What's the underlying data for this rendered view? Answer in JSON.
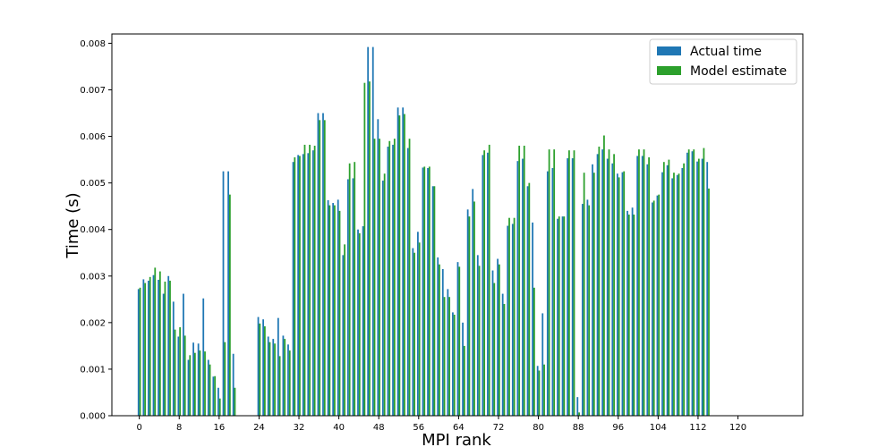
{
  "chart_data": {
    "type": "bar",
    "xlabel": "MPI rank",
    "ylabel": "Time (s)",
    "xlim": [
      -5.5,
      133
    ],
    "ylim": [
      0,
      0.0082
    ],
    "x_ticks": [
      0,
      8,
      16,
      24,
      32,
      40,
      48,
      56,
      64,
      72,
      80,
      88,
      96,
      104,
      112,
      120
    ],
    "y_ticks": [
      0.0,
      0.001,
      0.002,
      0.003,
      0.004,
      0.005,
      0.006,
      0.007,
      0.008
    ],
    "y_tick_labels": [
      "0.000",
      "0.001",
      "0.002",
      "0.003",
      "0.004",
      "0.005",
      "0.006",
      "0.007",
      "0.008"
    ],
    "legend_position": "top-right",
    "series": [
      {
        "name": "Actual time",
        "color": "#1f77b4",
        "values": [
          0.00272,
          0.00293,
          0.0029,
          0.00302,
          0.00292,
          0.00262,
          0.003,
          0.00245,
          0.0017,
          0.00262,
          0.0012,
          0.00157,
          0.00155,
          0.00252,
          0.0012,
          0.00084,
          0.0006,
          0.00525,
          0.00525,
          0.00133,
          0,
          0,
          0,
          0,
          0.00212,
          0.00207,
          0.0017,
          0.00165,
          0.0021,
          0.00172,
          0.00153,
          0.00545,
          0.0056,
          0.00562,
          0.00564,
          0.0057,
          0.0065,
          0.0065,
          0.00463,
          0.00457,
          0.00464,
          0.00345,
          0.00508,
          0.0051,
          0.004,
          0.00407,
          0.00792,
          0.00792,
          0.00637,
          0.00505,
          0.00578,
          0.00582,
          0.00662,
          0.00662,
          0.00575,
          0.0036,
          0.00395,
          0.00533,
          0.00532,
          0.00493,
          0.0034,
          0.00315,
          0.00272,
          0.00222,
          0.0033,
          0.002,
          0.00443,
          0.00487,
          0.00345,
          0.0056,
          0.00565,
          0.00312,
          0.00337,
          0.00262,
          0.00408,
          0.00412,
          0.00547,
          0.00552,
          0.00493,
          0.00415,
          0.00107,
          0.0022,
          0.00525,
          0.00532,
          0.00423,
          0.00428,
          0.00553,
          0.00553,
          0.0004,
          0.00455,
          0.00464,
          0.0054,
          0.00562,
          0.00572,
          0.00552,
          0.00542,
          0.0052,
          0.00523,
          0.0044,
          0.00447,
          0.00558,
          0.00558,
          0.0054,
          0.00458,
          0.00473,
          0.00523,
          0.00538,
          0.0051,
          0.00517,
          0.00532,
          0.00565,
          0.00568,
          0.00546,
          0.00552,
          0.00545
        ],
        "x": [
          0,
          1,
          2,
          3,
          4,
          5,
          6,
          7,
          8,
          9,
          10,
          11,
          12,
          13,
          14,
          15,
          16,
          17,
          18,
          19,
          20,
          21,
          22,
          23,
          24,
          25,
          26,
          27,
          28,
          29,
          30,
          31,
          32,
          33,
          34,
          35,
          36,
          37,
          38,
          39,
          40,
          41,
          42,
          43,
          44,
          45,
          46,
          47,
          48,
          49,
          50,
          51,
          52,
          53,
          54,
          55,
          56,
          57,
          58,
          59,
          60,
          61,
          62,
          63,
          64,
          65,
          66,
          67,
          68,
          69,
          70,
          71,
          72,
          73,
          74,
          75,
          76,
          77,
          78,
          79,
          80,
          81,
          82,
          83,
          84,
          85,
          86,
          87,
          88,
          89,
          90,
          91,
          92,
          93,
          94,
          95,
          96,
          97,
          98,
          99,
          100,
          101,
          102,
          103,
          104,
          105,
          106,
          107,
          108,
          109,
          110,
          111,
          112,
          113,
          114
        ]
      },
      {
        "name": "Model estimate",
        "color": "#2ca02c",
        "values": [
          0.00275,
          0.00285,
          0.00298,
          0.00318,
          0.0031,
          0.00288,
          0.0029,
          0.00185,
          0.0019,
          0.00172,
          0.0013,
          0.00135,
          0.0014,
          0.00138,
          0.0011,
          0.00085,
          0.00037,
          0.00158,
          0.00475,
          0.0006,
          0,
          0,
          0,
          0,
          0.00198,
          0.00192,
          0.00158,
          0.00155,
          0.00128,
          0.00165,
          0.0014,
          0.00555,
          0.00558,
          0.00582,
          0.00582,
          0.0058,
          0.00635,
          0.00635,
          0.00452,
          0.00452,
          0.0044,
          0.00368,
          0.00542,
          0.00545,
          0.00392,
          0.00715,
          0.00718,
          0.00595,
          0.00595,
          0.0052,
          0.0059,
          0.00595,
          0.00645,
          0.00648,
          0.00595,
          0.0035,
          0.00372,
          0.00535,
          0.00535,
          0.00493,
          0.00325,
          0.00255,
          0.00255,
          0.00217,
          0.0032,
          0.0015,
          0.00428,
          0.0046,
          0.00322,
          0.0057,
          0.00582,
          0.00285,
          0.00325,
          0.0024,
          0.00425,
          0.00425,
          0.0058,
          0.0058,
          0.005,
          0.00275,
          0.00097,
          0.0011,
          0.00572,
          0.00572,
          0.00428,
          0.00428,
          0.0057,
          0.0057,
          7e-05,
          0.00522,
          0.00452,
          0.00522,
          0.00578,
          0.00602,
          0.00572,
          0.00562,
          0.00512,
          0.00525,
          0.00432,
          0.00432,
          0.00572,
          0.00572,
          0.00555,
          0.00462,
          0.00475,
          0.00545,
          0.0055,
          0.00522,
          0.0052,
          0.00542,
          0.00572,
          0.00572,
          0.00552,
          0.00575,
          0.00488
        ],
        "x": [
          0,
          1,
          2,
          3,
          4,
          5,
          6,
          7,
          8,
          9,
          10,
          11,
          12,
          13,
          14,
          15,
          16,
          17,
          18,
          19,
          20,
          21,
          22,
          23,
          24,
          25,
          26,
          27,
          28,
          29,
          30,
          31,
          32,
          33,
          34,
          35,
          36,
          37,
          38,
          39,
          40,
          41,
          42,
          43,
          44,
          45,
          46,
          47,
          48,
          49,
          50,
          51,
          52,
          53,
          54,
          55,
          56,
          57,
          58,
          59,
          60,
          61,
          62,
          63,
          64,
          65,
          66,
          67,
          68,
          69,
          70,
          71,
          72,
          73,
          74,
          75,
          76,
          77,
          78,
          79,
          80,
          81,
          82,
          83,
          84,
          85,
          86,
          87,
          88,
          89,
          90,
          91,
          92,
          93,
          94,
          95,
          96,
          97,
          98,
          99,
          100,
          101,
          102,
          103,
          104,
          105,
          106,
          107,
          108,
          109,
          110,
          111,
          112,
          113,
          114
        ]
      }
    ]
  }
}
